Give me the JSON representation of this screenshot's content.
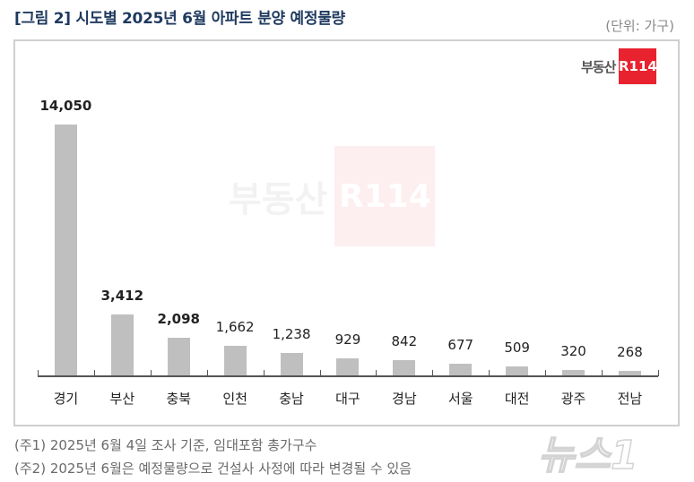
{
  "header": {
    "title": "[그림 2] 시도별 2025년 6월 아파트 분양 예정물량",
    "unit": "(단위: 가구)"
  },
  "logo": {
    "text": "부동산",
    "box": "R114"
  },
  "watermark": {
    "text": "부동산",
    "box": "R114",
    "news": "뉴스1"
  },
  "colors": {
    "bar": "#bfbfbf",
    "title": "#1f3a5f",
    "brand_red": "#e8232f"
  },
  "chart_data": {
    "type": "bar",
    "title": "[그림 2] 시도별 2025년 6월 아파트 분양 예정물량",
    "xlabel": "",
    "ylabel": "(단위: 가구)",
    "categories": [
      "경기",
      "부산",
      "충북",
      "인천",
      "충남",
      "대구",
      "경남",
      "서울",
      "대전",
      "광주",
      "전남"
    ],
    "values": [
      14050,
      3412,
      2098,
      1662,
      1238,
      929,
      842,
      677,
      509,
      320,
      268
    ],
    "value_labels": [
      "14,050",
      "3,412",
      "2,098",
      "1,662",
      "1,238",
      "929",
      "842",
      "677",
      "509",
      "320",
      "268"
    ],
    "bold_labels": [
      true,
      true,
      true,
      false,
      false,
      false,
      false,
      false,
      false,
      false,
      false
    ],
    "ylim": [
      0,
      14050
    ],
    "grid": false,
    "legend": "none"
  },
  "notes": [
    "(주1) 2025년 6월 4일 조사 기준, 임대포함 총가구수",
    "(주2) 2025년 6월은 예정물량으로 건설사 사정에 따라 변경될 수 있음"
  ]
}
